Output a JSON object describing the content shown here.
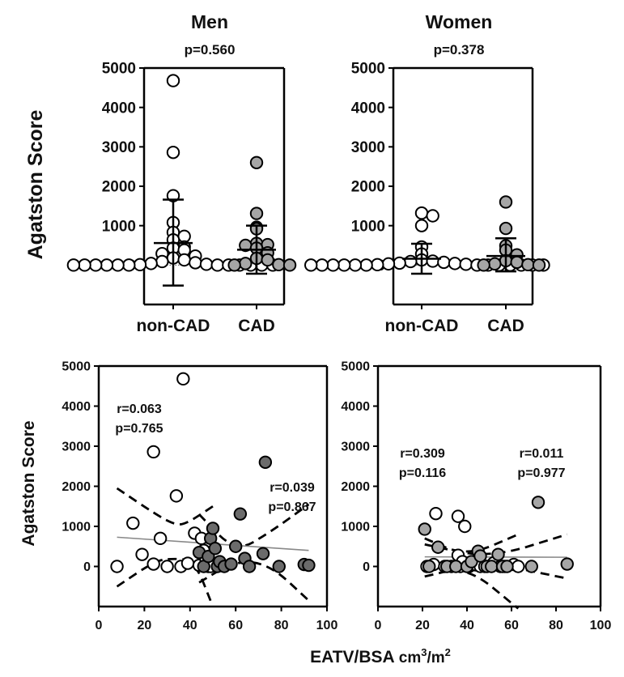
{
  "figure": {
    "shared_x_label_main": "EATV/BSA",
    "shared_x_label_unit_base": "cm",
    "shared_x_label_unit_sup1": "3",
    "shared_x_label_unit_mid": "/m",
    "shared_x_label_unit_sup2": "2"
  },
  "colors": {
    "open_marker": "#ffffff",
    "noncad_fill_panel": "#ffffff",
    "cad_fill_light": "#a6a6a6",
    "cad_fill_dark": "#6b6b6b",
    "marker_stroke": "#000000"
  },
  "chart_data": [
    {
      "type": "scatter",
      "panel": "top-left",
      "title": "Men",
      "subtitle": "p=0.560",
      "ylabel": "Agatston Score",
      "categories": [
        "non-CAD",
        "CAD"
      ],
      "ylim": [
        -1000,
        5000
      ],
      "yticks": [
        0,
        1000,
        2000,
        3000,
        4000,
        5000
      ],
      "reference_line_y": 0,
      "series": [
        {
          "category": "non-CAD",
          "marker": "open",
          "mean": 560,
          "sd_low": -520,
          "sd_high": 1660,
          "values": [
            4680,
            2860,
            1760,
            1080,
            830,
            730,
            640,
            460,
            430,
            380,
            290,
            230,
            180,
            130,
            90,
            60,
            40,
            20,
            10,
            0,
            0,
            0,
            0,
            0,
            0,
            0,
            0,
            0,
            0,
            0,
            0
          ]
        },
        {
          "category": "CAD",
          "marker": "grey",
          "mean": 390,
          "sd_low": -220,
          "sd_high": 1000,
          "values": [
            2600,
            1310,
            960,
            920,
            550,
            520,
            500,
            430,
            310,
            170,
            130,
            40,
            10,
            0,
            0
          ]
        }
      ]
    },
    {
      "type": "scatter",
      "panel": "top-right",
      "title": "Women",
      "subtitle": "p=0.378",
      "ylabel": "",
      "categories": [
        "non-CAD",
        "CAD"
      ],
      "ylim": [
        -1000,
        5000
      ],
      "yticks": [
        0,
        1000,
        2000,
        3000,
        4000,
        5000
      ],
      "reference_line_y": 0,
      "series": [
        {
          "category": "non-CAD",
          "marker": "open",
          "mean": 160,
          "sd_low": -220,
          "sd_high": 540,
          "values": [
            1320,
            1250,
            1000,
            460,
            280,
            130,
            100,
            90,
            70,
            50,
            40,
            30,
            20,
            10,
            0,
            0,
            0,
            0,
            0,
            0,
            0,
            0,
            0,
            0,
            0,
            0,
            0
          ]
        },
        {
          "category": "CAD",
          "marker": "grey",
          "mean": 230,
          "sd_low": -160,
          "sd_high": 680,
          "values": [
            1600,
            930,
            490,
            380,
            260,
            110,
            70,
            30,
            10,
            0,
            0
          ]
        }
      ]
    },
    {
      "type": "scatter",
      "panel": "bottom-left",
      "ylabel": "Agatston Score",
      "xlim": [
        0,
        100
      ],
      "ylim": [
        -1000,
        5000
      ],
      "xticks": [
        0,
        20,
        40,
        60,
        80,
        100
      ],
      "yticks": [
        0,
        1000,
        2000,
        3000,
        4000,
        5000
      ],
      "annotations": [
        {
          "lines": [
            "r=0.063",
            "p=0.765"
          ],
          "refers_to": "non-CAD"
        },
        {
          "lines": [
            "r=0.039",
            "p=0.867"
          ],
          "refers_to": "CAD"
        }
      ],
      "series": [
        {
          "marker": "open",
          "points": [
            [
              8,
              0
            ],
            [
              15,
              1080
            ],
            [
              19,
              300
            ],
            [
              24,
              2860
            ],
            [
              24,
              60
            ],
            [
              27,
              700
            ],
            [
              30,
              0
            ],
            [
              34,
              1760
            ],
            [
              36,
              0
            ],
            [
              37,
              4680
            ],
            [
              39,
              80
            ],
            [
              42,
              830
            ],
            [
              44,
              30
            ],
            [
              45,
              700
            ],
            [
              46,
              400
            ],
            [
              47,
              180
            ],
            [
              48,
              0
            ],
            [
              49,
              0
            ]
          ]
        },
        {
          "marker": "dark",
          "points": [
            [
              44,
              350
            ],
            [
              46,
              0
            ],
            [
              48,
              250
            ],
            [
              49,
              700
            ],
            [
              50,
              950
            ],
            [
              51,
              450
            ],
            [
              52,
              0
            ],
            [
              53,
              120
            ],
            [
              55,
              0
            ],
            [
              58,
              60
            ],
            [
              60,
              500
            ],
            [
              62,
              1310
            ],
            [
              64,
              200
            ],
            [
              66,
              0
            ],
            [
              72,
              320
            ],
            [
              73,
              2600
            ],
            [
              79,
              0
            ],
            [
              90,
              50
            ],
            [
              92,
              30
            ]
          ]
        }
      ],
      "fit_lines": [
        {
          "x": [
            8,
            92
          ],
          "y": [
            730,
            400
          ]
        }
      ],
      "ci_bands": [
        {
          "upper": [
            [
              8,
              1950
            ],
            [
              25,
              1300
            ],
            [
              33,
              1050
            ],
            [
              38,
              1050
            ],
            [
              50,
              1500
            ]
          ],
          "lower": [
            [
              8,
              -500
            ],
            [
              25,
              150
            ],
            [
              33,
              200
            ],
            [
              42,
              150
            ],
            [
              50,
              -1000
            ]
          ]
        },
        {
          "upper": [
            [
              44,
              1300
            ],
            [
              60,
              350
            ],
            [
              75,
              850
            ],
            [
              92,
              1550
            ]
          ],
          "lower": [
            [
              44,
              -400
            ],
            [
              60,
              150
            ],
            [
              75,
              50
            ],
            [
              92,
              -850
            ]
          ]
        }
      ]
    },
    {
      "type": "scatter",
      "panel": "bottom-right",
      "ylabel": "",
      "xlim": [
        0,
        100
      ],
      "ylim": [
        -1000,
        5000
      ],
      "xticks": [
        0,
        20,
        40,
        60,
        80,
        100
      ],
      "yticks": [
        0,
        1000,
        2000,
        3000,
        4000,
        5000
      ],
      "annotations": [
        {
          "lines": [
            "r=0.309",
            "p=0.116"
          ],
          "refers_to": "non-CAD"
        },
        {
          "lines": [
            "r=0.011",
            "p=0.977"
          ],
          "refers_to": "CAD"
        }
      ],
      "series": [
        {
          "marker": "open",
          "points": [
            [
              22,
              0
            ],
            [
              25,
              50
            ],
            [
              26,
              1320
            ],
            [
              30,
              0
            ],
            [
              33,
              0
            ],
            [
              36,
              1250
            ],
            [
              36,
              280
            ],
            [
              37,
              0
            ],
            [
              38,
              120
            ],
            [
              39,
              1000
            ],
            [
              41,
              0
            ],
            [
              44,
              40
            ],
            [
              46,
              0
            ],
            [
              48,
              0
            ],
            [
              52,
              90
            ],
            [
              55,
              0
            ],
            [
              57,
              0
            ],
            [
              61,
              50
            ],
            [
              63,
              0
            ]
          ]
        },
        {
          "marker": "grey",
          "points": [
            [
              21,
              930
            ],
            [
              23,
              0
            ],
            [
              27,
              480
            ],
            [
              31,
              0
            ],
            [
              35,
              0
            ],
            [
              40,
              0
            ],
            [
              42,
              120
            ],
            [
              45,
              380
            ],
            [
              46,
              260
            ],
            [
              49,
              0
            ],
            [
              51,
              0
            ],
            [
              54,
              300
            ],
            [
              56,
              0
            ],
            [
              58,
              0
            ],
            [
              69,
              0
            ],
            [
              72,
              1600
            ],
            [
              85,
              60
            ]
          ]
        }
      ],
      "fit_lines": [
        {
          "x": [
            21,
            85
          ],
          "y": [
            240,
            230
          ]
        }
      ],
      "ci_bands": [
        {
          "upper": [
            [
              21,
              700
            ],
            [
              40,
              250
            ],
            [
              63,
              800
            ]
          ],
          "lower": [
            [
              21,
              -250
            ],
            [
              40,
              0
            ],
            [
              63,
              -1050
            ]
          ]
        },
        {
          "upper": [
            [
              21,
              550
            ],
            [
              50,
              200
            ],
            [
              85,
              800
            ]
          ],
          "lower": [
            [
              21,
              -80
            ],
            [
              50,
              100
            ],
            [
              85,
              -300
            ]
          ]
        }
      ]
    }
  ]
}
